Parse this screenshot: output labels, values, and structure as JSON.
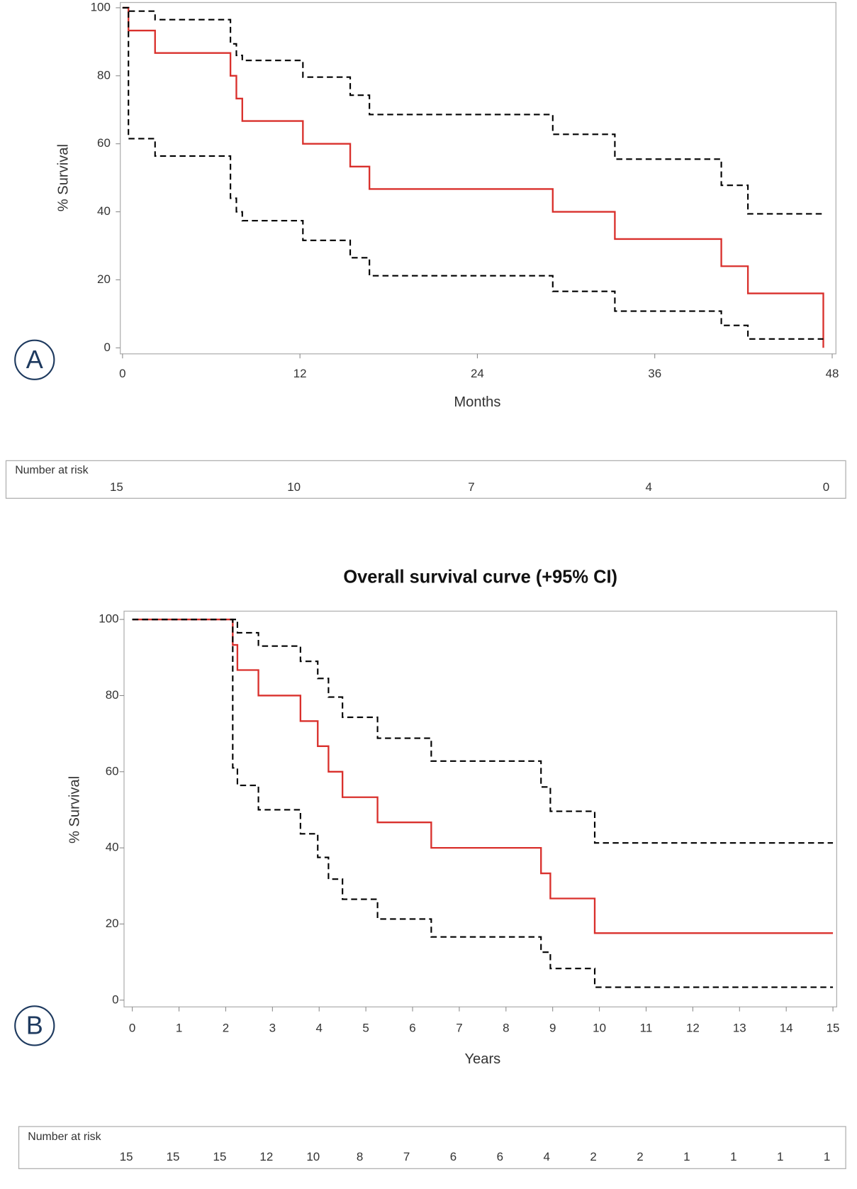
{
  "chart_data": [
    {
      "type": "line",
      "step": "post",
      "panel_label": "A",
      "x_label": "Months",
      "y_label": "% Survival",
      "xlim": [
        0,
        48
      ],
      "ylim": [
        0,
        100
      ],
      "xticks": [
        0,
        12,
        24,
        36,
        48
      ],
      "yticks": [
        0,
        20,
        40,
        60,
        80,
        100
      ],
      "x": [
        0,
        0.4,
        2.2,
        7.3,
        7.7,
        8.1,
        12.2,
        15.4,
        16.7,
        29.1,
        33.3,
        40.5,
        42.3,
        47.4
      ],
      "series": [
        {
          "color": "#d9302c",
          "dashed": false,
          "values": [
            100,
            93.3,
            86.7,
            80,
            73.3,
            66.7,
            60,
            53.3,
            46.7,
            40,
            32,
            24,
            16,
            0
          ]
        },
        {
          "color": "#000000",
          "dashed": true,
          "values": [
            100,
            99,
            96.5,
            89.4,
            86,
            84.5,
            79.6,
            74.3,
            68.6,
            62.8,
            55.5,
            47.8,
            39.4,
            39.4
          ]
        },
        {
          "color": "#000000",
          "dashed": true,
          "values": [
            100,
            61.5,
            56.4,
            44,
            40,
            37.4,
            31.6,
            26.5,
            21.2,
            16.6,
            10.8,
            6.6,
            2.6,
            2.6
          ]
        }
      ],
      "risk_table": {
        "title": "Number at risk",
        "values": [
          15,
          10,
          7,
          4,
          0
        ]
      }
    },
    {
      "type": "line",
      "step": "post",
      "panel_label": "B",
      "title": "Overall survival curve (+95% CI)",
      "x_label": "Years",
      "y_label": "% Survival",
      "xlim": [
        0,
        15
      ],
      "ylim": [
        0,
        100
      ],
      "xticks": [
        0,
        1,
        2,
        3,
        4,
        5,
        6,
        7,
        8,
        9,
        10,
        11,
        12,
        13,
        14,
        15
      ],
      "yticks": [
        0,
        20,
        40,
        60,
        80,
        100
      ],
      "x": [
        0,
        2.15,
        2.25,
        2.7,
        3.6,
        3.97,
        4.2,
        4.5,
        5.25,
        6.4,
        8.75,
        8.95,
        9.9,
        15
      ],
      "series": [
        {
          "color": "#d9302c",
          "dashed": false,
          "values": [
            100,
            93.3,
            86.7,
            80,
            73.3,
            66.7,
            60,
            53.3,
            46.7,
            40,
            33.3,
            26.7,
            17.6,
            17.6
          ]
        },
        {
          "color": "#000000",
          "dashed": true,
          "values": [
            100,
            100,
            96.5,
            93,
            89,
            84.5,
            79.6,
            74.3,
            68.8,
            62.8,
            56,
            49.6,
            41.3,
            41.3
          ]
        },
        {
          "color": "#000000",
          "dashed": true,
          "values": [
            100,
            61,
            56.4,
            50,
            43.7,
            37.5,
            31.8,
            26.5,
            21.3,
            16.6,
            12.6,
            8.3,
            3.4,
            3.4
          ]
        }
      ],
      "risk_table": {
        "title": "Number at risk",
        "values": [
          15,
          15,
          15,
          12,
          10,
          8,
          7,
          6,
          6,
          4,
          2,
          2,
          1,
          1,
          1,
          1
        ]
      }
    }
  ]
}
